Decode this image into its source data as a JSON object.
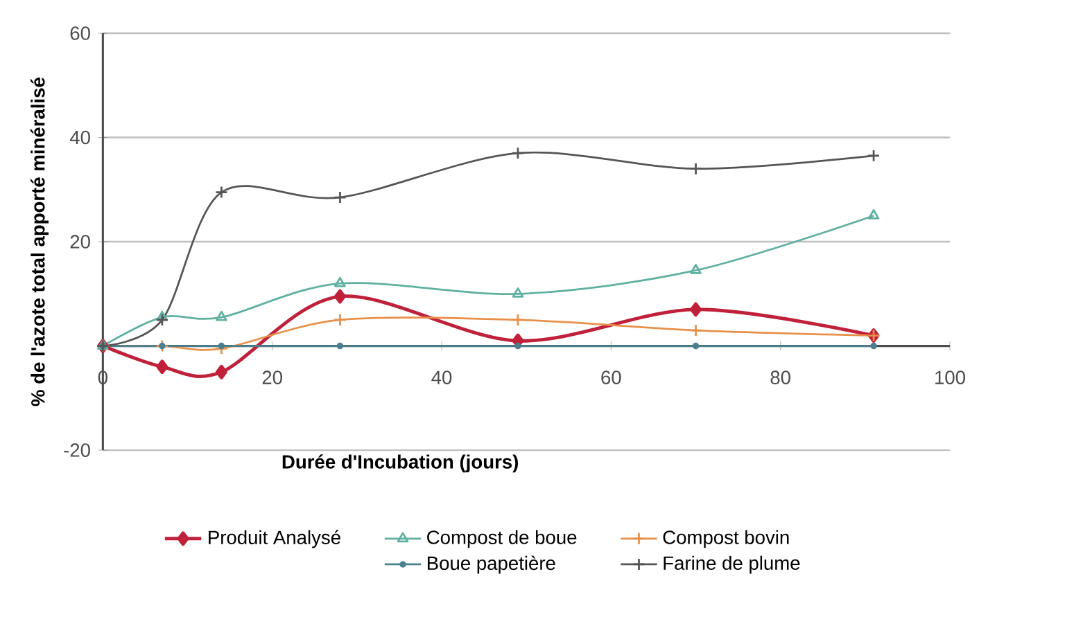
{
  "chart_data": {
    "type": "line",
    "xlabel": "Durée d'Incubation (jours)",
    "ylabel": "% de l'azote total apporté minéralisé",
    "x": [
      0,
      7,
      14,
      28,
      49,
      70,
      91
    ],
    "xlim": [
      0,
      100
    ],
    "xticks": [
      0,
      20,
      40,
      60,
      80,
      100
    ],
    "ylim": [
      -20,
      60
    ],
    "yticks": [
      -20,
      {
        "value": 0,
        "label": null
      },
      20,
      40,
      60
    ],
    "grid": "y",
    "legend": "bottom",
    "series": [
      {
        "name": "Produit Analysé",
        "color": "#c0203a",
        "marker": "diamond",
        "values": [
          0,
          -4,
          -5,
          9.5,
          1,
          7,
          2
        ]
      },
      {
        "name": "Compost de boue",
        "color": "#5fb0a0",
        "marker": "triangle",
        "values": [
          0,
          5.5,
          5.5,
          12,
          10,
          14.5,
          25
        ]
      },
      {
        "name": "Compost bovin",
        "color": "#e8904a",
        "marker": "cross",
        "values": [
          0,
          0,
          -0.5,
          5,
          5,
          3,
          2
        ]
      },
      {
        "name": "Boue papetière",
        "color": "#4a7f8f",
        "marker": "circle",
        "values": [
          0,
          0,
          0,
          0,
          0,
          0,
          0
        ]
      },
      {
        "name": "Farine de plume",
        "color": "#555555",
        "marker": "cross",
        "values": [
          0,
          5,
          29.5,
          28.5,
          37,
          34,
          36.5
        ]
      }
    ]
  }
}
